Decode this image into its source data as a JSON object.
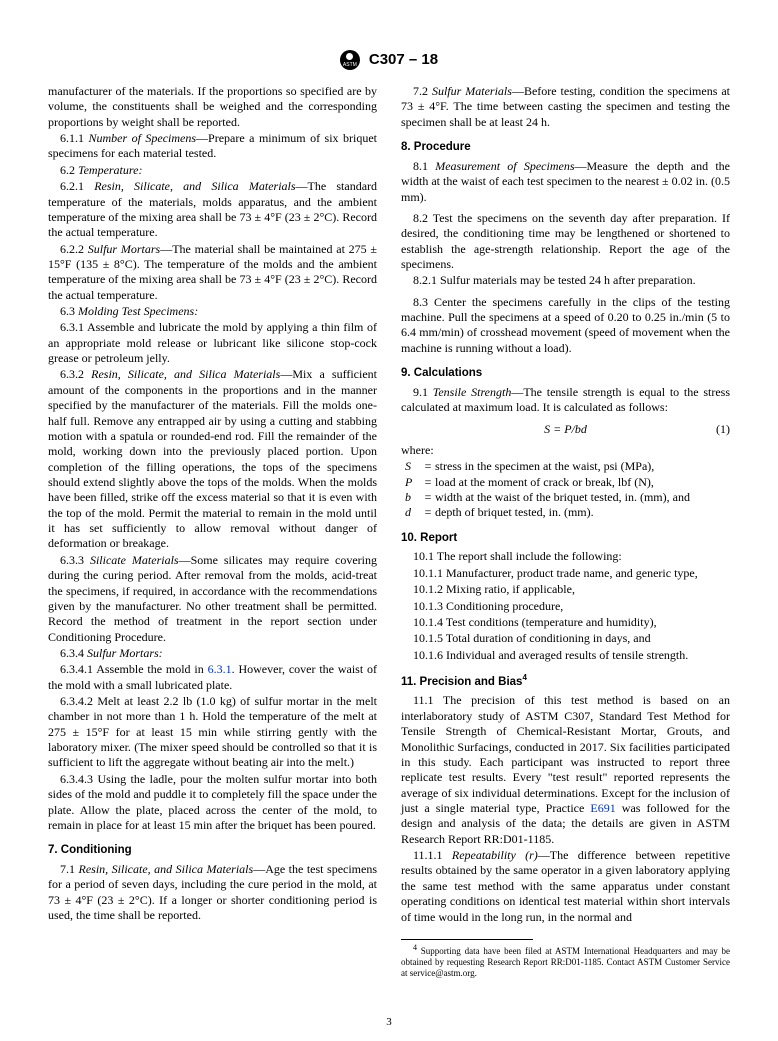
{
  "header": {
    "code": "C307 – 18"
  },
  "page_number": "3",
  "left": {
    "intro": "manufacturer of the materials. If the proportions so specified are by volume, the constituents shall be weighed and the corresponding proportions by weight shall be reported.",
    "p6_1_1_num": "6.1.1",
    "p6_1_1_title": "Number of Specimens",
    "p6_1_1": "—Prepare a minimum of six briquet specimens for each material tested.",
    "s6_2_num": "6.2",
    "s6_2_title": "Temperature:",
    "p6_2_1_num": "6.2.1",
    "p6_2_1_title": "Resin, Silicate, and Silica Materials",
    "p6_2_1": "—The standard temperature of the materials, molds apparatus, and the ambient temperature of the mixing area shall be 73 ± 4°F (23 ± 2°C). Record the actual temperature.",
    "p6_2_2_num": "6.2.2",
    "p6_2_2_title": "Sulfur Mortars",
    "p6_2_2": "—The material shall be maintained at 275 ± 15°F (135 ± 8°C). The temperature of the molds and the ambient temperature of the mixing area shall be 73 ± 4°F (23 ± 2°C). Record the actual temperature.",
    "s6_3_num": "6.3",
    "s6_3_title": "Molding Test Specimens:",
    "p6_3_1_num": "6.3.1",
    "p6_3_1": "Assemble and lubricate the mold by applying a thin film of an appropriate mold release or lubricant like silicone stop-cock grease or petroleum jelly.",
    "p6_3_2_num": "6.3.2",
    "p6_3_2_title": "Resin, Silicate, and Silica Materials",
    "p6_3_2": "—Mix a sufficient amount of the components in the proportions and in the manner specified by the manufacturer of the materials. Fill the molds one-half full. Remove any entrapped air by using a cutting and stabbing motion with a spatula or rounded-end rod. Fill the remainder of the mold, working down into the previously placed portion. Upon completion of the filling operations, the tops of the specimens should extend slightly above the tops of the molds. When the molds have been filled, strike off the excess material so that it is even with the top of the mold. Permit the material to remain in the mold until it has set sufficiently to allow removal without danger of deformation or breakage.",
    "p6_3_3_num": "6.3.3",
    "p6_3_3_title": "Silicate Materials",
    "p6_3_3": "—Some silicates may require covering during the curing period. After removal from the molds, acid-treat the specimens, if required, in accordance with the recommendations given by the manufacturer. No other treatment shall be permitted. Record the method of treatment in the report section under Conditioning Procedure.",
    "s6_3_4_num": "6.3.4",
    "s6_3_4_title": "Sulfur Mortars:",
    "p6_3_4_1_num": "6.3.4.1",
    "p6_3_4_1a": "Assemble the mold in ",
    "p6_3_4_1_link": "6.3.1",
    "p6_3_4_1b": ". However, cover the waist of the mold with a small lubricated plate.",
    "p6_3_4_2_num": "6.3.4.2",
    "p6_3_4_2": "Melt at least 2.2 lb (1.0 kg) of sulfur mortar in the melt chamber in not more than 1 h. Hold the temperature of the melt at 275 ± 15°F for at least 15 min while stirring gently with the laboratory mixer. (The mixer speed should be controlled so that it is sufficient to lift the aggregate without beating air into the melt.)",
    "p6_3_4_3_num": "6.3.4.3",
    "p6_3_4_3": "Using the ladle, pour the molten sulfur mortar into both sides of the mold and puddle it to completely fill the space under the plate. Allow the plate, placed across the center of the mold, to remain in place for at least 15 min after the briquet has been poured.",
    "s7_head": "7. Conditioning",
    "p7_1_num": "7.1",
    "p7_1_title": "Resin, Silicate, and Silica Materials",
    "p7_1": "—Age the test specimens for a period of seven days, including the cure period in the mold, at 73 ± 4°F (23 ± 2°C). If a longer or shorter conditioning period is used, the time shall be reported.",
    "p7_2_num": "7.2",
    "p7_2_title": "Sulfur Materials",
    "p7_2": "—Before testing, condition the specimens at 73 ± 4°F. The time between casting the specimen and testing the specimen shall be at least 24 h."
  },
  "right": {
    "s8_head": "8. Procedure",
    "p8_1_num": "8.1",
    "p8_1_title": "Measurement of Specimens",
    "p8_1": "—Measure the depth and the width at the waist of each test specimen to the nearest ± 0.02 in. (0.5 mm).",
    "p8_2_num": "8.2",
    "p8_2": "Test the specimens on the seventh day after preparation. If desired, the conditioning time may be lengthened or shortened to establish the age-strength relationship. Report the age of the specimens.",
    "p8_2_1_num": "8.2.1",
    "p8_2_1": "Sulfur materials may be tested 24 h after preparation.",
    "p8_3_num": "8.3",
    "p8_3": "Center the specimens carefully in the clips of the testing machine. Pull the specimens at a speed of 0.20 to 0.25 in./min (5 to 6.4 mm/min) of crosshead movement (speed of movement when the machine is running without a load).",
    "s9_head": "9. Calculations",
    "p9_1_num": "9.1",
    "p9_1_title": "Tensile Strength",
    "p9_1": "—The tensile strength is equal to the stress calculated at maximum load. It is calculated as follows:",
    "formula": "S = P/bd",
    "formula_num": "(1)",
    "where_label": "where:",
    "where": [
      {
        "sym": "S",
        "def": "stress in the specimen at the waist, psi (MPa),"
      },
      {
        "sym": "P",
        "def": "load at the moment of crack or break, lbf (N),"
      },
      {
        "sym": "b",
        "def": "width at the waist of the briquet tested, in. (mm), and"
      },
      {
        "sym": "d",
        "def": "depth of briquet tested, in. (mm)."
      }
    ],
    "s10_head": "10. Report",
    "p10_1_num": "10.1",
    "p10_1": "The report shall include the following:",
    "items10": [
      {
        "num": "10.1.1",
        "txt": "Manufacturer, product trade name, and generic type,"
      },
      {
        "num": "10.1.2",
        "txt": "Mixing ratio, if applicable,"
      },
      {
        "num": "10.1.3",
        "txt": "Conditioning procedure,"
      },
      {
        "num": "10.1.4",
        "txt": "Test conditions (temperature and humidity),"
      },
      {
        "num": "10.1.5",
        "txt": "Total duration of conditioning in days, and"
      },
      {
        "num": "10.1.6",
        "txt": "Individual and averaged results of tensile strength."
      }
    ],
    "s11_head": "11. Precision and Bias",
    "s11_sup": "4",
    "p11_1_num": "11.1",
    "p11_1a": "The precision of this test method is based on an interlaboratory study of ASTM C307, Standard Test Method for Tensile Strength of Chemical-Resistant Mortar, Grouts, and Monolithic Surfacings, conducted in 2017. Six facilities participated in this study. Each participant was instructed to report three replicate test results. Every \"test result\" reported represents the average of six individual determinations. Except for the inclusion of just a single material type, Practice ",
    "p11_1_link": "E691",
    "p11_1b": " was followed for the design and analysis of the data; the details are given in ASTM Research Report RR:D01-1185.",
    "p11_1_1_num": "11.1.1",
    "p11_1_1_title": "Repeatability (r)",
    "p11_1_1": "—The difference between repetitive results obtained by the same operator in a given laboratory applying the same test method with the same apparatus under constant operating conditions on identical test material within short intervals of time would in the long run, in the normal and",
    "footnote_sup": "4",
    "footnote": " Supporting data have been filed at ASTM International Headquarters and may be obtained by requesting Research Report RR:D01-1185. Contact ASTM Customer Service at service@astm.org."
  }
}
